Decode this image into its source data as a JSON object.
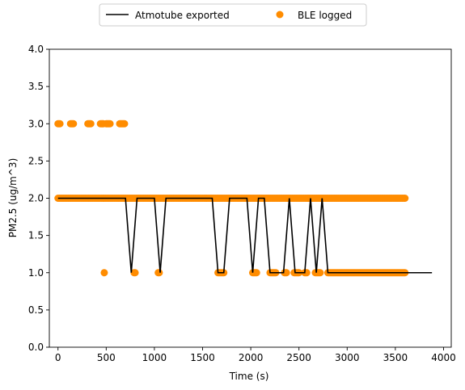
{
  "chart_data": {
    "type": "line+scatter",
    "xlabel": "Time (s)",
    "ylabel": "PM2.5 (ug/m^3)",
    "xlim": [
      -90,
      4080
    ],
    "ylim": [
      0.0,
      4.0
    ],
    "xticks": [
      0,
      500,
      1000,
      1500,
      2000,
      2500,
      3000,
      3500,
      4000
    ],
    "yticks": [
      0.0,
      0.5,
      1.0,
      1.5,
      2.0,
      2.5,
      3.0,
      3.5,
      4.0
    ],
    "ytick_labels": [
      "0.0",
      "0.5",
      "1.0",
      "1.5",
      "2.0",
      "2.5",
      "3.0",
      "3.5",
      "4.0"
    ],
    "grid": false,
    "legend": {
      "placement": "top-center-outside",
      "columns": 2
    },
    "series": [
      {
        "name": "Atmotube exported",
        "kind": "line",
        "color": "#000000",
        "x": [
          0,
          700,
          760,
          820,
          1000,
          1060,
          1120,
          1600,
          1660,
          1720,
          1780,
          1960,
          2020,
          2080,
          2140,
          2200,
          2340,
          2400,
          2460,
          2560,
          2620,
          2680,
          2740,
          2800,
          3880
        ],
        "y": [
          2,
          2,
          1,
          2,
          2,
          1,
          2,
          2,
          1,
          1,
          2,
          2,
          1,
          2,
          2,
          1,
          1,
          2,
          1,
          1,
          2,
          1,
          2,
          1,
          1
        ]
      },
      {
        "name": "BLE logged",
        "kind": "scatter",
        "color": "#ff8c00",
        "clusters": [
          {
            "y": 2.0,
            "x_start": 0,
            "x_end": 3600,
            "step": 15
          },
          {
            "y": 3.0,
            "x_start": 0,
            "x_end": 20,
            "step": 10
          },
          {
            "y": 3.0,
            "x_start": 130,
            "x_end": 160,
            "step": 10
          },
          {
            "y": 3.0,
            "x_start": 310,
            "x_end": 340,
            "step": 10
          },
          {
            "y": 3.0,
            "x_start": 440,
            "x_end": 470,
            "step": 10
          },
          {
            "y": 3.0,
            "x_start": 500,
            "x_end": 540,
            "step": 10
          },
          {
            "y": 3.0,
            "x_start": 640,
            "x_end": 690,
            "step": 10
          },
          {
            "y": 1.0,
            "x_start": 480,
            "x_end": 480,
            "step": 10
          },
          {
            "y": 1.0,
            "x_start": 790,
            "x_end": 800,
            "step": 10
          },
          {
            "y": 1.0,
            "x_start": 1040,
            "x_end": 1050,
            "step": 10
          },
          {
            "y": 1.0,
            "x_start": 1660,
            "x_end": 1720,
            "step": 10
          },
          {
            "y": 1.0,
            "x_start": 2020,
            "x_end": 2060,
            "step": 10
          },
          {
            "y": 1.0,
            "x_start": 2200,
            "x_end": 2260,
            "step": 10
          },
          {
            "y": 1.0,
            "x_start": 2350,
            "x_end": 2370,
            "step": 10
          },
          {
            "y": 1.0,
            "x_start": 2450,
            "x_end": 2500,
            "step": 10
          },
          {
            "y": 1.0,
            "x_start": 2560,
            "x_end": 2580,
            "step": 10
          },
          {
            "y": 1.0,
            "x_start": 2670,
            "x_end": 2720,
            "step": 10
          },
          {
            "y": 1.0,
            "x_start": 2800,
            "x_end": 3600,
            "step": 10
          }
        ]
      }
    ]
  }
}
